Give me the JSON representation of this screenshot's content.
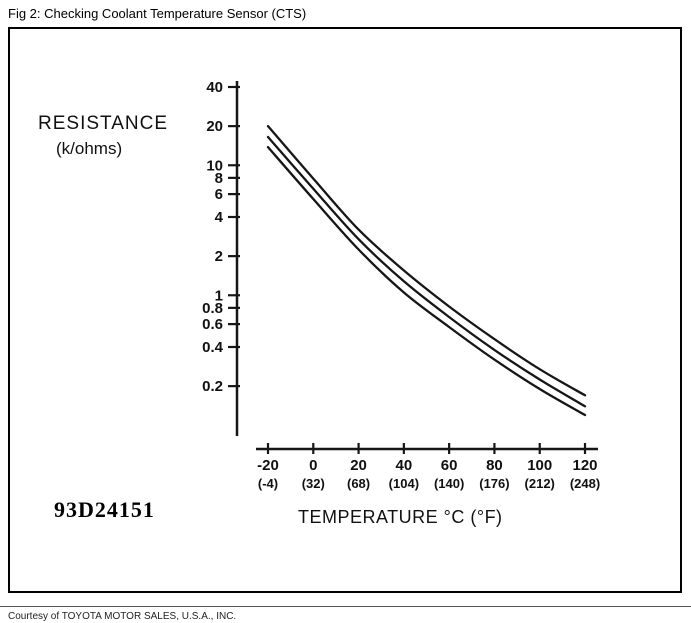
{
  "figure": {
    "caption": "Fig 2: Checking Coolant Temperature Sensor (CTS)",
    "figure_id": "93D24151",
    "courtesy": "Courtesy of TOYOTA MOTOR SALES, U.S.A., INC."
  },
  "chart_data": {
    "type": "line",
    "title": "Coolant Temperature Sensor resistance vs temperature",
    "ylabel": "RESISTANCE",
    "ylabel_units": "(k/ohms)",
    "xlabel": "TEMPERATURE °C (°F)",
    "y_scale": "log",
    "grid": false,
    "legend": "none",
    "line_color": "#161616",
    "xlim": [
      -20,
      120
    ],
    "ylim": [
      0.1,
      45
    ],
    "y_ticks": [
      "40",
      "20",
      "10",
      "8",
      "6",
      "4",
      "2",
      "1",
      "0.8",
      "0.6",
      "0.4",
      "0.2"
    ],
    "x_tick_labels_c": [
      "-20",
      "0",
      "20",
      "40",
      "60",
      "80",
      "100",
      "120"
    ],
    "x_tick_labels_f": [
      "(-4)",
      "(32)",
      "(68)",
      "(104)",
      "(140)",
      "(176)",
      "(212)",
      "(248)"
    ],
    "x": [
      -20,
      0,
      20,
      40,
      60,
      80,
      100,
      120
    ],
    "series": [
      {
        "name": "upper",
        "values": [
          20.0,
          7.9,
          3.2,
          1.55,
          0.82,
          0.46,
          0.27,
          0.17
        ]
      },
      {
        "name": "middle",
        "values": [
          16.5,
          6.6,
          2.7,
          1.28,
          0.68,
          0.38,
          0.225,
          0.14
        ]
      },
      {
        "name": "lower",
        "values": [
          13.8,
          5.5,
          2.25,
          1.05,
          0.57,
          0.32,
          0.19,
          0.12
        ]
      }
    ]
  }
}
